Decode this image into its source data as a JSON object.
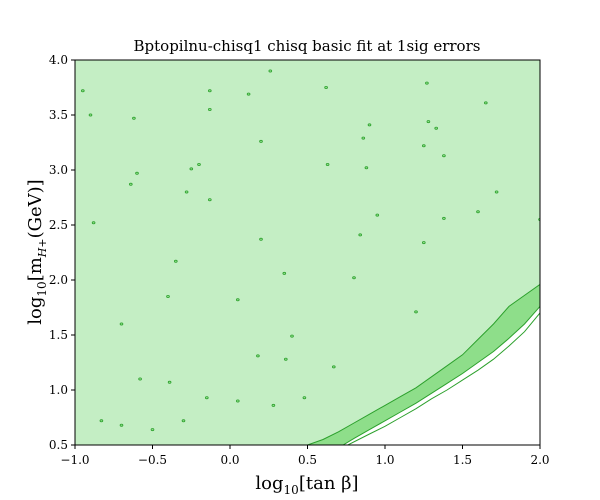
{
  "chart_data": {
    "type": "contour",
    "title": "Bptopilnu-chisq1 chisq basic fit at 1sig errors",
    "xlabel": {
      "main": "log",
      "sub": "10",
      "rest": "[tan β]"
    },
    "ylabel": {
      "main": "log",
      "sub": "10",
      "mid": "[m",
      "subsub": "H+",
      "rest": "(GeV)]"
    },
    "xlim": [
      -1.0,
      2.0
    ],
    "ylim": [
      0.5,
      4.0
    ],
    "x_ticks": [
      -1.0,
      -0.5,
      0.0,
      0.5,
      1.0,
      1.5,
      2.0
    ],
    "x_tick_labels": [
      "−1.0",
      "−0.5",
      "0.0",
      "0.5",
      "1.0",
      "1.5",
      "2.0"
    ],
    "y_ticks": [
      0.5,
      1.0,
      1.5,
      2.0,
      2.5,
      3.0,
      3.5,
      4.0
    ],
    "y_tick_labels": [
      "0.5",
      "1.0",
      "1.5",
      "2.0",
      "2.5",
      "3.0",
      "3.5",
      "4.0"
    ],
    "grid": false,
    "colors": {
      "allowed_fill": "#c4eec4",
      "band_fill": "#8ede8a",
      "contour_line": "#2ca02c",
      "excluded_fill": "#ffffff"
    },
    "band_outer_boundary": [
      [
        0.5,
        0.5
      ],
      [
        0.6,
        0.55
      ],
      [
        0.7,
        0.62
      ],
      [
        0.8,
        0.7
      ],
      [
        0.9,
        0.78
      ],
      [
        1.0,
        0.86
      ],
      [
        1.1,
        0.94
      ],
      [
        1.2,
        1.02
      ],
      [
        1.3,
        1.12
      ],
      [
        1.4,
        1.22
      ],
      [
        1.5,
        1.32
      ],
      [
        1.6,
        1.46
      ],
      [
        1.7,
        1.6
      ],
      [
        1.8,
        1.76
      ],
      [
        1.9,
        1.86
      ],
      [
        2.0,
        1.96
      ]
    ],
    "band_inner_boundary": [
      [
        0.73,
        0.5
      ],
      [
        0.8,
        0.56
      ],
      [
        0.9,
        0.64
      ],
      [
        1.0,
        0.72
      ],
      [
        1.1,
        0.8
      ],
      [
        1.2,
        0.88
      ],
      [
        1.3,
        0.97
      ],
      [
        1.4,
        1.06
      ],
      [
        1.5,
        1.15
      ],
      [
        1.6,
        1.25
      ],
      [
        1.7,
        1.35
      ],
      [
        1.8,
        1.47
      ],
      [
        1.9,
        1.6
      ],
      [
        2.0,
        1.76
      ]
    ],
    "secondary_contour": [
      [
        0.76,
        0.5
      ],
      [
        0.9,
        0.6
      ],
      [
        1.0,
        0.67
      ],
      [
        1.1,
        0.75
      ],
      [
        1.2,
        0.83
      ],
      [
        1.3,
        0.92
      ],
      [
        1.4,
        1.0
      ],
      [
        1.5,
        1.09
      ],
      [
        1.6,
        1.18
      ],
      [
        1.7,
        1.28
      ],
      [
        1.8,
        1.4
      ],
      [
        1.9,
        1.53
      ],
      [
        2.0,
        1.7
      ]
    ],
    "islands": [
      [
        -0.95,
        3.72
      ],
      [
        -0.9,
        3.5
      ],
      [
        -0.88,
        2.52
      ],
      [
        -0.83,
        0.72
      ],
      [
        -0.7,
        1.6
      ],
      [
        -0.7,
        0.68
      ],
      [
        -0.64,
        2.87
      ],
      [
        -0.62,
        3.47
      ],
      [
        -0.6,
        2.97
      ],
      [
        -0.58,
        1.1
      ],
      [
        -0.5,
        0.64
      ],
      [
        -0.4,
        1.85
      ],
      [
        -0.39,
        1.07
      ],
      [
        -0.35,
        2.17
      ],
      [
        -0.3,
        0.72
      ],
      [
        -0.28,
        2.8
      ],
      [
        -0.25,
        3.01
      ],
      [
        -0.2,
        3.05
      ],
      [
        -0.15,
        0.93
      ],
      [
        -0.13,
        3.72
      ],
      [
        -0.13,
        3.55
      ],
      [
        -0.13,
        2.73
      ],
      [
        0.05,
        1.82
      ],
      [
        0.05,
        0.9
      ],
      [
        0.12,
        3.69
      ],
      [
        0.18,
        1.31
      ],
      [
        0.2,
        2.37
      ],
      [
        0.2,
        3.26
      ],
      [
        0.28,
        0.86
      ],
      [
        0.26,
        3.9
      ],
      [
        0.35,
        2.06
      ],
      [
        0.36,
        1.28
      ],
      [
        0.4,
        1.49
      ],
      [
        0.48,
        0.93
      ],
      [
        0.62,
        3.75
      ],
      [
        0.63,
        3.05
      ],
      [
        0.67,
        1.21
      ],
      [
        0.8,
        2.02
      ],
      [
        0.84,
        2.41
      ],
      [
        0.86,
        3.29
      ],
      [
        0.88,
        3.02
      ],
      [
        0.9,
        3.41
      ],
      [
        0.95,
        2.59
      ],
      [
        1.2,
        1.71
      ],
      [
        1.25,
        2.34
      ],
      [
        1.25,
        3.22
      ],
      [
        1.27,
        3.79
      ],
      [
        1.28,
        3.44
      ],
      [
        1.33,
        3.38
      ],
      [
        1.38,
        3.13
      ],
      [
        1.38,
        2.56
      ],
      [
        1.6,
        2.62
      ],
      [
        1.65,
        3.61
      ],
      [
        1.72,
        2.8
      ],
      [
        2.0,
        2.55
      ]
    ]
  }
}
